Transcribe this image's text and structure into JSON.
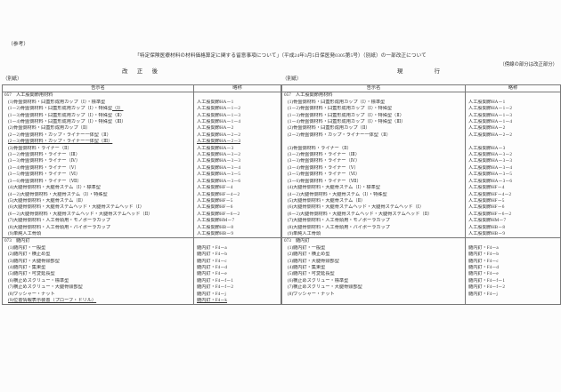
{
  "page": {
    "reference_label": "（参考）",
    "title": "「特定保険医療材料の材料価格算定に関する留意事項について」（平成24年3月5日保医発0305第5号）（別紙）の一部改正について",
    "revision_note": "（傍線の部分は改正部分）",
    "left_column_heading": "改　正　後",
    "right_column_heading": "現　　　行",
    "attachment_label_left": "（別紙）",
    "attachment_label_right": "（別紙）"
  },
  "colors": {
    "paper": "#fcfcfc",
    "ink": "#333333",
    "line": "#787878"
  },
  "table_headers": {
    "name": "告示名",
    "abbr": "略称"
  },
  "left_table": {
    "sections": [
      {
        "code_title": "057　人工股関節用材料",
        "rows": [
          {
            "n": "(1)骨盤側材料・臼蓋形成用カップ（Ⅰ）・標準型",
            "a": "人工股関節HA－1"
          },
          {
            "n": "(1－2)骨盤側材料・臼蓋形成用カップ（Ⅰ）・特殊型",
            "ns": "（Ⅰ）",
            "a": "人工股関節HA－1－2"
          },
          {
            "n": "(1－3)骨盤側材料・臼蓋形成用カップ（Ⅰ）・特殊型（Ⅱ）",
            "a": "人工股関節HA－1－3"
          },
          {
            "n": "(1－4)骨盤側材料・臼蓋形成用カップ（Ⅰ）・特殊型（Ⅲ）",
            "a": "人工股関節HA－1－4"
          },
          {
            "n": "(2)骨盤側材料・臼蓋形成用カップ（Ⅱ）",
            "a": "人工股関節HA－2"
          },
          {
            "n": "(2－2)骨盤側材料・カップ・ライナー一体型（Ⅱ）",
            "a": "人工股関節HA－2－2"
          },
          {
            "n": "(2－3)骨盤側材料・カップ・ライナー一体型（Ⅲ）",
            "a": "人工股関節HA－2－3",
            "u": true
          },
          {
            "n": "(3)骨盤側材料・ライナー（Ⅱ）",
            "a": "人工股関節HA－3"
          },
          {
            "n": "(3－2)骨盤側材料・ライナー（Ⅲ）",
            "a": "人工股関節HA－3－2"
          },
          {
            "n": "(3－3)骨盤側材料・ライナー（Ⅳ）",
            "a": "人工股関節HA－3－3"
          },
          {
            "n": "(3－4)骨盤側材料・ライナー（Ⅴ）",
            "a": "人工股関節HA－3－4"
          },
          {
            "n": "(3－5)骨盤側材料・ライナー（Ⅵ）",
            "a": "人工股関節HA－3－5"
          },
          {
            "n": "(3－6)骨盤側材料・ライナー（Ⅶ）",
            "a": "人工股関節HA－3－6"
          },
          {
            "n": "(4)大腿骨側材料・大腿骨ステム（Ⅰ）・標準型",
            "a": "人工股関節HF－4"
          },
          {
            "n": "(4－2)大腿骨側材料・大腿骨ステム（Ⅰ）・特殊型",
            "a": "人工股関節HF－4－2"
          },
          {
            "n": "(5)大腿骨側材料・大腿骨ステム（Ⅱ）",
            "a": "人工股関節HF－5"
          },
          {
            "n": "(6)大腿骨側材料・大腿骨ステムヘッド・大腿骨ステムヘッド（Ⅰ）",
            "a": "人工股関節HF－6"
          },
          {
            "n": "(6－2)大腿骨側材料・大腿骨ステムヘッド・大腿骨ステムヘッド（Ⅱ）",
            "a": "人工股関節HF－6－2"
          },
          {
            "n": "(7)大腿骨側材料・人工骨頭用・モノポーラカップ",
            "a": "人工股関節HM－7"
          },
          {
            "n": "(8)大腿骨側材料・人工骨頭用・バイポーラカップ",
            "a": "人工股関節HB－8"
          },
          {
            "n": "(9)単純人工骨頭",
            "a": "人工股関節HB－9"
          }
        ]
      },
      {
        "code_title": "073　髄内釘",
        "rows": [
          {
            "n": "(1)髄内釘・一般型",
            "a": "髄内釘・F4－a"
          },
          {
            "n": "(2)髄内釘・横止め型",
            "a": "髄内釘・F4－b"
          },
          {
            "n": "(3)髄内釘・大腿骨頸部型",
            "a": "髄内釘・F4－c"
          },
          {
            "n": "(4)髄内釘・集束型",
            "a": "髄内釘・F4－d"
          },
          {
            "n": "(5)髄内釘・可変延長型",
            "a": "髄内釘・F4－e"
          },
          {
            "n": "(6)横止めスクリュー・標準型",
            "a": "髄内釘・F4－f－1"
          },
          {
            "n": "(7)横止めスクリュー・大腿骨頸部型",
            "a": "髄内釘・F4－f－2"
          },
          {
            "n": "(8)ワッシャー・ナット",
            "a": "髄内釘・F4－j"
          },
          {
            "n": "(9)位置情報表示装置（プローブ・ドリル）",
            "a": "髄内釘・F4－k",
            "u": true
          }
        ]
      }
    ]
  },
  "right_table": {
    "sections": [
      {
        "code_title": "057　人工股関節用材料",
        "rows": [
          {
            "n": "(1)骨盤側材料・臼蓋形成用カップ（Ⅰ）・標準型",
            "a": "人工股関節HA－1"
          },
          {
            "n": "(1－2)骨盤側材料・臼蓋形成用カップ（Ⅰ）・特殊型",
            "a": "人工股関節HA－1－2"
          },
          {
            "n": "(1－3)骨盤側材料・臼蓋形成用カップ（Ⅰ）・特殊型（Ⅱ）",
            "a": "人工股関節HA－1－3"
          },
          {
            "n": "(1－4)骨盤側材料・臼蓋形成用カップ（Ⅰ）・特殊型（Ⅲ）",
            "a": "人工股関節HA－1－4"
          },
          {
            "n": "(2)骨盤側材料・臼蓋形成用カップ（Ⅱ）",
            "a": "人工股関節HA－2"
          },
          {
            "n": "(2－2)骨盤側材料・カップ・ライナー一体型（Ⅱ）",
            "a": "人工股関節HA－2－2"
          },
          {
            "blank": true
          },
          {
            "n": "(3)骨盤側材料・ライナー（Ⅱ）",
            "a": "人工股関節HA－3"
          },
          {
            "n": "(3－2)骨盤側材料・ライナー（Ⅲ）",
            "a": "人工股関節HA－3－2"
          },
          {
            "n": "(3－3)骨盤側材料・ライナー（Ⅳ）",
            "a": "人工股関節HA－3－3"
          },
          {
            "n": "(3－4)骨盤側材料・ライナー（Ⅴ）",
            "a": "人工股関節HA－3－4"
          },
          {
            "n": "(3－5)骨盤側材料・ライナー（Ⅵ）",
            "a": "人工股関節HA－3－5"
          },
          {
            "n": "(3－6)骨盤側材料・ライナー（Ⅶ）",
            "a": "人工股関節HA－3－6"
          },
          {
            "n": "(4)大腿骨側材料・大腿骨ステム（Ⅰ）・標準型",
            "a": "人工股関節HF－4"
          },
          {
            "n": "(4－2)大腿骨側材料・大腿骨ステム（Ⅰ）・特殊型",
            "a": "人工股関節HF－4－2"
          },
          {
            "n": "(5)大腿骨側材料・大腿骨ステム（Ⅱ）",
            "a": "人工股関節HF－5"
          },
          {
            "n": "(6)大腿骨側材料・大腿骨ステムヘッド・大腿骨ステムヘッド（Ⅰ）",
            "a": "人工股関節HF－6"
          },
          {
            "n": "(6－2)大腿骨側材料・大腿骨ステムヘッド・大腿骨ステムヘッド（Ⅱ）",
            "a": "人工股関節HF－6－2"
          },
          {
            "n": "(7)大腿骨側材料・人工骨頭用・モノポーラカップ",
            "a": "人工股関節HM－7"
          },
          {
            "n": "(8)大腿骨側材料・人工骨頭用・バイポーラカップ",
            "a": "人工股関節HB－8"
          },
          {
            "n": "(9)単純人工骨頭",
            "a": "人工股関節HB－9"
          }
        ]
      },
      {
        "code_title": "073　髄内釘",
        "rows": [
          {
            "n": "(1)髄内釘・一般型",
            "a": "髄内釘・F4－a"
          },
          {
            "n": "(2)髄内釘・横止め型",
            "a": "髄内釘・F4－b"
          },
          {
            "n": "(3)髄内釘・大腿骨頸部型",
            "a": "髄内釘・F4－c"
          },
          {
            "n": "(4)髄内釘・集束型",
            "a": "髄内釘・F4－d"
          },
          {
            "n": "(5)髄内釘・可変延長型",
            "a": "髄内釘・F4－e"
          },
          {
            "n": "(6)横止めスクリュー・標準型",
            "a": "髄内釘・F4－f－1"
          },
          {
            "n": "(7)横止めスクリュー・大腿骨頸部型",
            "a": "髄内釘・F4－f－2"
          },
          {
            "n": "(8)ワッシャー・ナット",
            "a": "髄内釘・F4－j"
          },
          {
            "blank": true
          }
        ]
      }
    ]
  }
}
